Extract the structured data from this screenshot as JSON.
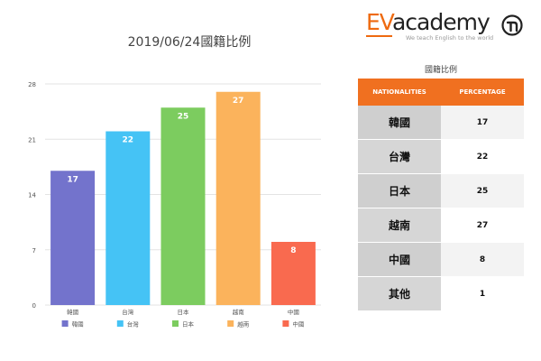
{
  "chart_data": {
    "type": "bar",
    "title": "2019/06/24國籍比例",
    "categories": [
      "韓國",
      "台灣",
      "日本",
      "越南",
      "中國"
    ],
    "values": [
      17,
      22,
      25,
      27,
      8
    ],
    "colors": [
      "#7373cc",
      "#45c3f5",
      "#7ccc5f",
      "#fbb35c",
      "#f96a4f"
    ],
    "yticks": [
      0,
      7,
      14,
      21,
      28
    ],
    "ylim": [
      0,
      28
    ],
    "grid": true,
    "legend": "bottom"
  },
  "logo": {
    "ev": "EV",
    "academy": "academy",
    "tagline": "We teach English to the world"
  },
  "table": {
    "title": "國籍比例",
    "headers": [
      "NATIONALITIES",
      "PERCENTAGE"
    ],
    "rows": [
      {
        "nationality": "韓國",
        "percentage": "17"
      },
      {
        "nationality": "台灣",
        "percentage": "22"
      },
      {
        "nationality": "日本",
        "percentage": "25"
      },
      {
        "nationality": "越南",
        "percentage": "27"
      },
      {
        "nationality": "中國",
        "percentage": "8"
      },
      {
        "nationality": "其他",
        "percentage": "1"
      }
    ]
  }
}
